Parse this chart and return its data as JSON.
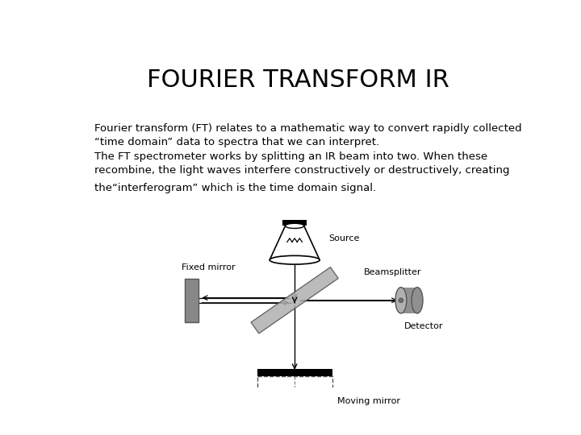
{
  "title": "FOURIER TRANSFORM IR",
  "title_fontsize": 22,
  "body_text_1": "Fourier transform (FT) relates to a mathematic way to convert rapidly collected\n“time domain” data to spectra that we can interpret.",
  "body_text_2": "The FT spectrometer works by splitting an IR beam into two. When these\nrecombine, the light waves interfere constructively or destructively, creating",
  "body_text_3": "the“interferogram” which is the time domain signal.",
  "text_fontsize": 9.5,
  "bg_color": "#ffffff",
  "text_color": "#000000",
  "label_source": "Source",
  "label_fixed_mirror": "Fixed mirror",
  "label_beamsplitter": "Beamsplitter",
  "label_detector": "Detector",
  "label_moving_mirror": "Moving mirror",
  "label_fontsize": 8
}
